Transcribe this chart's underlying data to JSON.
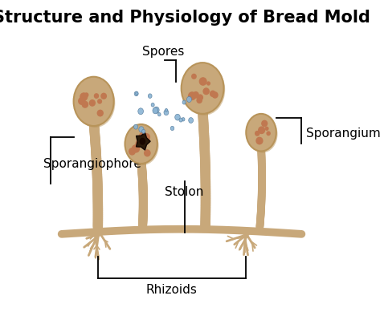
{
  "title": "Structure and Physiology of Bread Mold",
  "title_fontsize": 15,
  "title_fontweight": "bold",
  "bg_color": "#ffffff",
  "mold_color": "#c8a87a",
  "mold_dark": "#b8945a",
  "mold_spot": "#c07850",
  "stolon_color": "#c8a87a",
  "root_color": "#c8a87a",
  "spore_color": "#8ab4d4",
  "dark_center": "#2a1a0a",
  "labels": {
    "sporangiophore": "Sporangiophore",
    "spores": "Spores",
    "sporangium": "Sporangium",
    "stolon": "Stolon",
    "rhizoids": "Rhizoids"
  },
  "label_fontsize": 11
}
